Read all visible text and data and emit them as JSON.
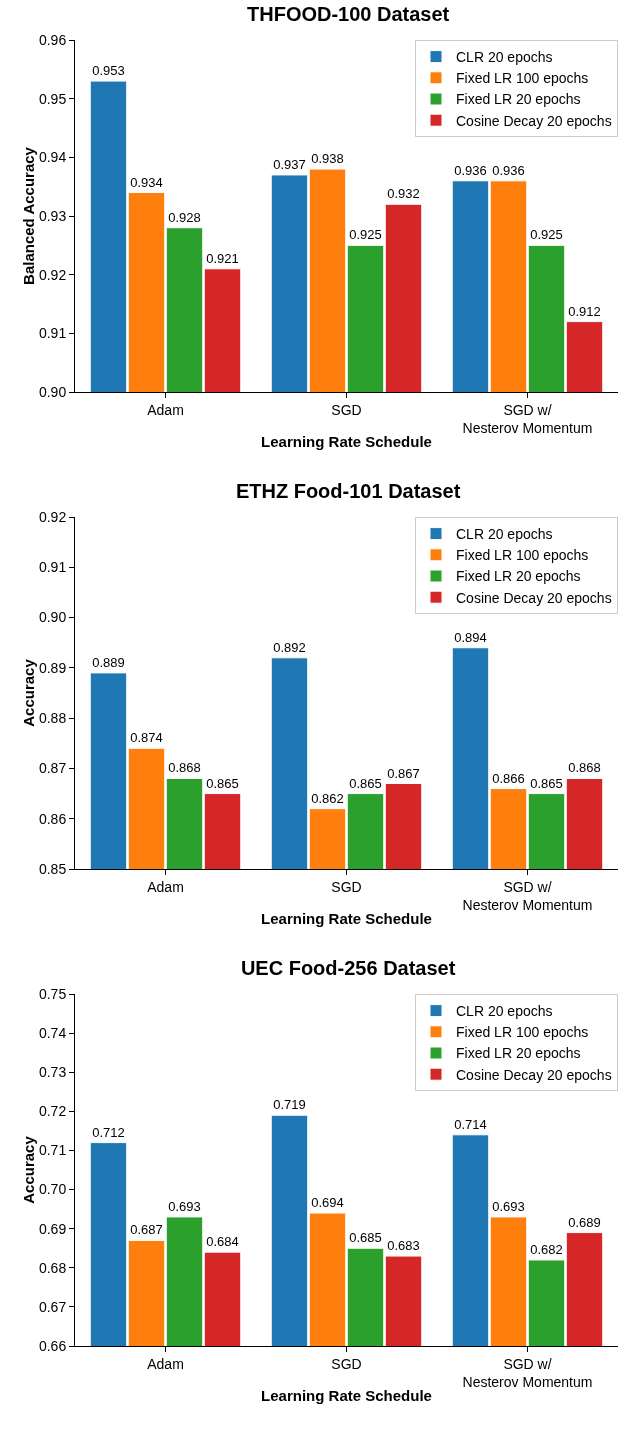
{
  "chart_data": [
    {
      "type": "bar",
      "title": "THFOOD-100 Dataset",
      "xlabel": "Learning Rate Schedule",
      "ylabel": "Balanced Accuracy",
      "categories": [
        "Adam",
        "SGD",
        "SGD w/\nNesterov Momentum"
      ],
      "series": [
        {
          "name": "CLR 20 epochs",
          "color": "#1f77b4",
          "values": [
            0.953,
            0.937,
            0.936
          ]
        },
        {
          "name": "Fixed LR 100 epochs",
          "color": "#ff7f0e",
          "values": [
            0.934,
            0.938,
            0.936
          ]
        },
        {
          "name": "Fixed LR 20 epochs",
          "color": "#2ca02c",
          "values": [
            0.928,
            0.925,
            0.925
          ]
        },
        {
          "name": "Cosine Decay 20 epochs",
          "color": "#d62728",
          "values": [
            0.921,
            0.932,
            0.912
          ]
        }
      ],
      "ylim": [
        0.9,
        0.96
      ],
      "yticks": [
        {
          "value": 0.9,
          "label": "0.90"
        },
        {
          "value": 0.91,
          "label": "0.91"
        },
        {
          "value": 0.92,
          "label": "0.92"
        },
        {
          "value": 0.93,
          "label": "0.93"
        },
        {
          "value": 0.94,
          "label": "0.94"
        },
        {
          "value": 0.95,
          "label": "0.95"
        },
        {
          "value": 0.96,
          "label": "0.96"
        }
      ],
      "grid": false,
      "legend": "top right",
      "data_labels": true
    },
    {
      "type": "bar",
      "title": "ETHZ Food-101 Dataset",
      "xlabel": "Learning Rate Schedule",
      "ylabel": "Accuracy",
      "categories": [
        "Adam",
        "SGD",
        "SGD w/\nNesterov Momentum"
      ],
      "series": [
        {
          "name": "CLR 20 epochs",
          "color": "#1f77b4",
          "values": [
            0.889,
            0.892,
            0.894
          ]
        },
        {
          "name": "Fixed LR 100 epochs",
          "color": "#ff7f0e",
          "values": [
            0.874,
            0.862,
            0.866
          ]
        },
        {
          "name": "Fixed LR 20 epochs",
          "color": "#2ca02c",
          "values": [
            0.868,
            0.865,
            0.865
          ]
        },
        {
          "name": "Cosine Decay 20 epochs",
          "color": "#d62728",
          "values": [
            0.865,
            0.867,
            0.868
          ]
        }
      ],
      "ylim": [
        0.85,
        0.92
      ],
      "yticks": [
        {
          "value": 0.85,
          "label": "0.85"
        },
        {
          "value": 0.86,
          "label": "0.86"
        },
        {
          "value": 0.87,
          "label": "0.87"
        },
        {
          "value": 0.88,
          "label": "0.88"
        },
        {
          "value": 0.89,
          "label": "0.89"
        },
        {
          "value": 0.9,
          "label": "0.90"
        },
        {
          "value": 0.91,
          "label": "0.91"
        },
        {
          "value": 0.92,
          "label": "0.92"
        }
      ],
      "grid": false,
      "legend": "top right",
      "data_labels": true
    },
    {
      "type": "bar",
      "title": "UEC Food-256 Dataset",
      "xlabel": "Learning Rate Schedule",
      "ylabel": "Accuracy",
      "categories": [
        "Adam",
        "SGD",
        "SGD w/\nNesterov Momentum"
      ],
      "series": [
        {
          "name": "CLR 20 epochs",
          "color": "#1f77b4",
          "values": [
            0.712,
            0.719,
            0.714
          ]
        },
        {
          "name": "Fixed LR 100 epochs",
          "color": "#ff7f0e",
          "values": [
            0.687,
            0.694,
            0.693
          ]
        },
        {
          "name": "Fixed LR 20 epochs",
          "color": "#2ca02c",
          "values": [
            0.693,
            0.685,
            0.682
          ]
        },
        {
          "name": "Cosine Decay 20 epochs",
          "color": "#d62728",
          "values": [
            0.684,
            0.683,
            0.689
          ]
        }
      ],
      "ylim": [
        0.66,
        0.75
      ],
      "yticks": [
        {
          "value": 0.66,
          "label": "0.66"
        },
        {
          "value": 0.67,
          "label": "0.67"
        },
        {
          "value": 0.68,
          "label": "0.68"
        },
        {
          "value": 0.69,
          "label": "0.69"
        },
        {
          "value": 0.7,
          "label": "0.70"
        },
        {
          "value": 0.71,
          "label": "0.71"
        },
        {
          "value": 0.72,
          "label": "0.72"
        },
        {
          "value": 0.73,
          "label": "0.73"
        },
        {
          "value": 0.74,
          "label": "0.74"
        },
        {
          "value": 0.75,
          "label": "0.75"
        }
      ],
      "grid": false,
      "legend": "top right",
      "data_labels": true
    }
  ]
}
